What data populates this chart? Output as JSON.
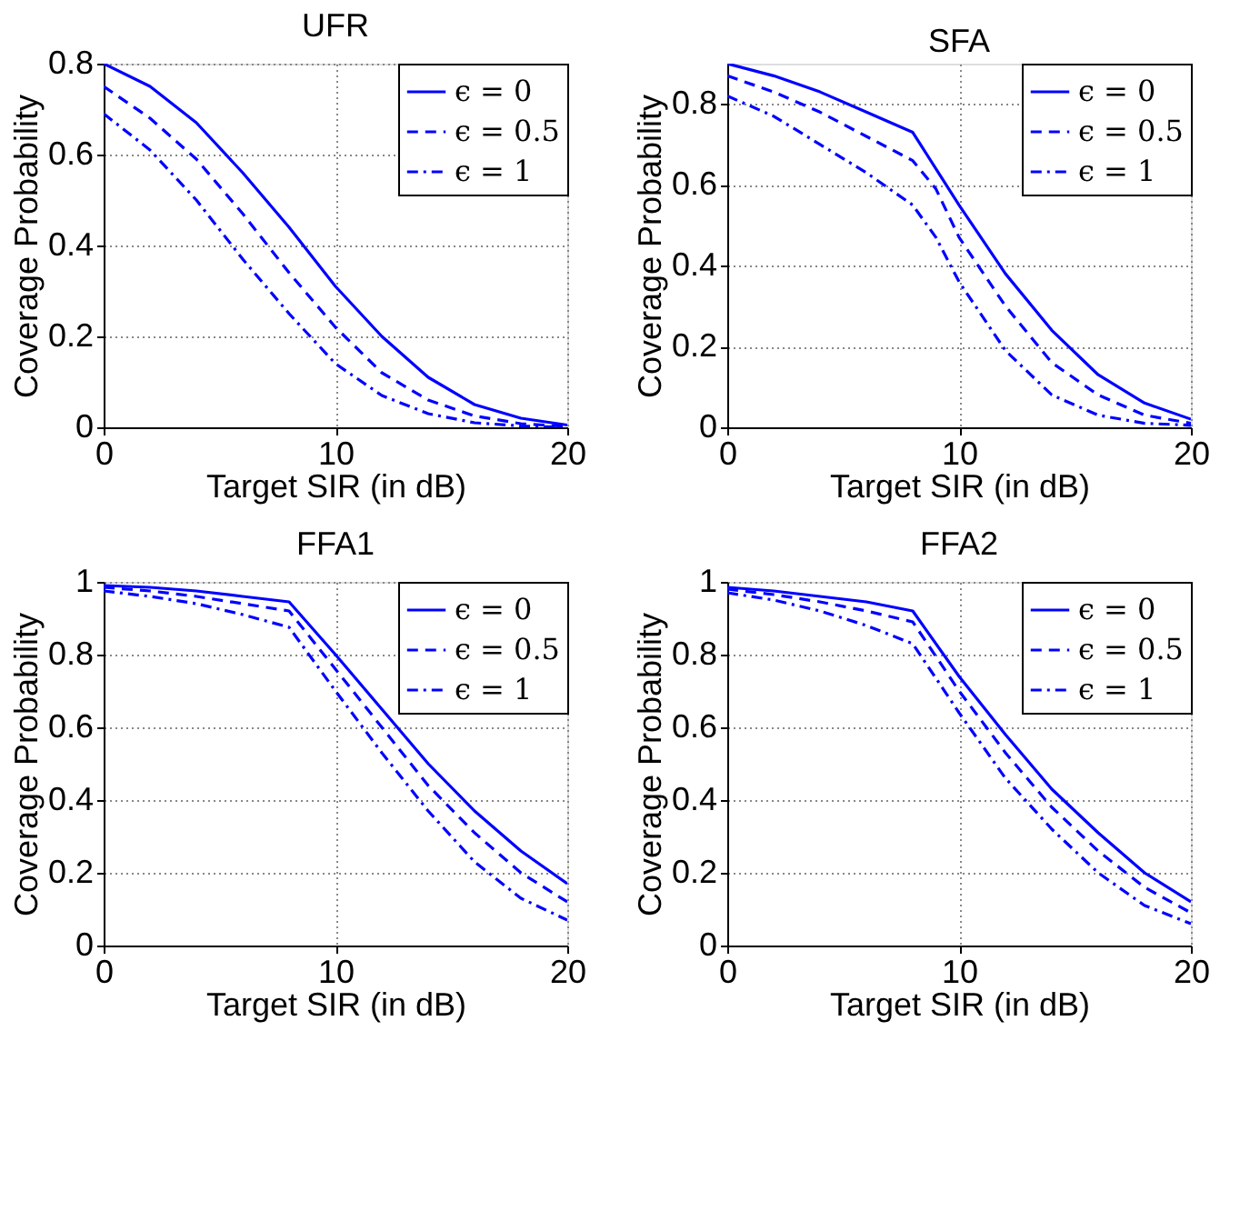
{
  "chart_data": [
    {
      "type": "line",
      "title": "UFR",
      "xlabel": "Target SIR (in dB)",
      "ylabel": "Coverage Probability",
      "x": [
        0,
        2,
        4,
        6,
        8,
        10,
        12,
        14,
        16,
        18,
        20
      ],
      "xlim": [
        0,
        20
      ],
      "xticks": [
        0,
        10,
        20
      ],
      "ylim": [
        0,
        0.8
      ],
      "yticks": [
        0,
        0.2,
        0.4,
        0.6,
        0.8
      ],
      "grid": true,
      "legend": "top right",
      "series": [
        {
          "name": "ϵ = 0",
          "color": "#0000ff",
          "line_style": "solid",
          "values": [
            0.8,
            0.75,
            0.67,
            0.56,
            0.44,
            0.31,
            0.2,
            0.11,
            0.05,
            0.02,
            0.005
          ]
        },
        {
          "name": "ϵ = 0.5",
          "color": "#0000ff",
          "line_style": "dashed",
          "values": [
            0.75,
            0.68,
            0.59,
            0.47,
            0.34,
            0.22,
            0.12,
            0.06,
            0.025,
            0.008,
            0.002
          ]
        },
        {
          "name": "ϵ = 1",
          "color": "#0000ff",
          "line_style": "dotted",
          "values": [
            0.69,
            0.61,
            0.5,
            0.37,
            0.25,
            0.14,
            0.07,
            0.03,
            0.01,
            0.003,
            0
          ]
        }
      ]
    },
    {
      "type": "line",
      "title": "SFA",
      "xlabel": "Target SIR (in dB)",
      "ylabel": "Coverage Probability",
      "x": [
        0,
        2,
        4,
        6,
        8,
        9,
        10,
        12,
        14,
        16,
        18,
        20
      ],
      "xlim": [
        0,
        20
      ],
      "xticks": [
        0,
        10,
        20
      ],
      "ylim": [
        0,
        0.9
      ],
      "yticks": [
        0,
        0.2,
        0.4,
        0.6,
        0.8
      ],
      "grid": true,
      "legend": "top right",
      "series": [
        {
          "name": "ϵ = 0",
          "color": "#0000ff",
          "line_style": "solid",
          "values": [
            0.9,
            0.87,
            0.83,
            0.78,
            0.73,
            0.64,
            0.55,
            0.38,
            0.24,
            0.13,
            0.06,
            0.02
          ]
        },
        {
          "name": "ϵ = 0.5",
          "color": "#0000ff",
          "line_style": "dashed",
          "values": [
            0.87,
            0.83,
            0.78,
            0.72,
            0.66,
            0.59,
            0.47,
            0.3,
            0.16,
            0.08,
            0.03,
            0.01
          ]
        },
        {
          "name": "ϵ = 1",
          "color": "#0000ff",
          "line_style": "dotted",
          "values": [
            0.82,
            0.77,
            0.7,
            0.63,
            0.55,
            0.47,
            0.36,
            0.19,
            0.08,
            0.03,
            0.01,
            0.005
          ]
        }
      ]
    },
    {
      "type": "line",
      "title": "FFA1",
      "xlabel": "Target SIR (in dB)",
      "ylabel": "Coverage Probability",
      "x": [
        0,
        2,
        4,
        6,
        8,
        10,
        12,
        14,
        16,
        18,
        20
      ],
      "xlim": [
        0,
        20
      ],
      "xticks": [
        0,
        10,
        20
      ],
      "ylim": [
        0,
        1
      ],
      "yticks": [
        0,
        0.2,
        0.4,
        0.6,
        0.8,
        1
      ],
      "grid": true,
      "legend": "top right",
      "series": [
        {
          "name": "ϵ = 0",
          "color": "#0000ff",
          "line_style": "solid",
          "values": [
            0.99,
            0.985,
            0.975,
            0.96,
            0.945,
            0.8,
            0.65,
            0.5,
            0.37,
            0.26,
            0.17
          ]
        },
        {
          "name": "ϵ = 0.5",
          "color": "#0000ff",
          "line_style": "dashed",
          "values": [
            0.985,
            0.975,
            0.96,
            0.94,
            0.92,
            0.76,
            0.6,
            0.44,
            0.31,
            0.2,
            0.12
          ]
        },
        {
          "name": "ϵ = 1",
          "color": "#0000ff",
          "line_style": "dotted",
          "values": [
            0.975,
            0.96,
            0.94,
            0.91,
            0.875,
            0.7,
            0.53,
            0.37,
            0.23,
            0.13,
            0.07
          ]
        }
      ]
    },
    {
      "type": "line",
      "title": "FFA2",
      "xlabel": "Target SIR (in dB)",
      "ylabel": "Coverage Probability",
      "x": [
        0,
        2,
        4,
        6,
        8,
        10,
        12,
        14,
        16,
        18,
        20
      ],
      "xlim": [
        0,
        20
      ],
      "xticks": [
        0,
        10,
        20
      ],
      "ylim": [
        0,
        1
      ],
      "yticks": [
        0,
        0.2,
        0.4,
        0.6,
        0.8,
        1
      ],
      "grid": true,
      "legend": "top right",
      "series": [
        {
          "name": "ϵ = 0",
          "color": "#0000ff",
          "line_style": "solid",
          "values": [
            0.985,
            0.975,
            0.96,
            0.945,
            0.92,
            0.74,
            0.58,
            0.43,
            0.31,
            0.2,
            0.12
          ]
        },
        {
          "name": "ϵ = 0.5",
          "color": "#0000ff",
          "line_style": "dashed",
          "values": [
            0.98,
            0.965,
            0.945,
            0.92,
            0.89,
            0.7,
            0.53,
            0.38,
            0.26,
            0.16,
            0.09
          ]
        },
        {
          "name": "ϵ = 1",
          "color": "#0000ff",
          "line_style": "dotted",
          "values": [
            0.97,
            0.95,
            0.92,
            0.88,
            0.83,
            0.64,
            0.46,
            0.32,
            0.2,
            0.11,
            0.06
          ]
        }
      ]
    }
  ]
}
